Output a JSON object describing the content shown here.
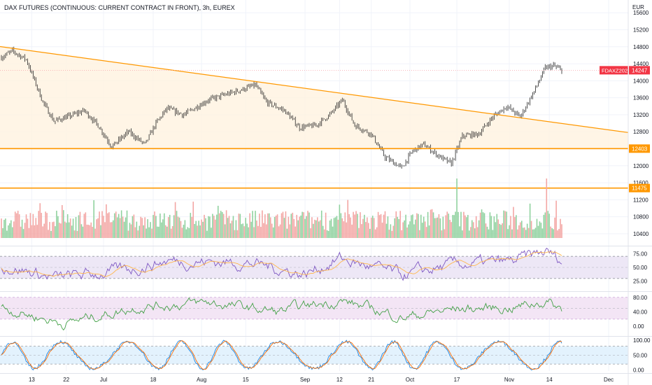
{
  "header": {
    "title": "DAX FUTURES (CONTINUOUS: CURRENT CONTRACT IN FRONT), 3h, EUREX"
  },
  "colors": {
    "up": "#4caf50",
    "down": "#ef5350",
    "candle": "#222222",
    "trend": "#ff9800",
    "rsi_line": "#7e57c2",
    "rsi_ma": "#ffb74d",
    "osc_line": "#43a047",
    "stoch_k": "#1e88e5",
    "stoch_d": "#ff6d00",
    "price_tag": "#f23645"
  },
  "chart_data": [
    {
      "type": "candlestick",
      "title": "DAX FUTURES (CONTINUOUS: CURRENT CONTRACT IN FRONT), 3h, EUREX",
      "ylabel": "EUR",
      "y_ticks": [
        15600,
        15200,
        14800,
        14400,
        14000,
        13600,
        13200,
        12800,
        12400,
        12000,
        11600,
        11200,
        10800,
        10400
      ],
      "ylim": [
        10300,
        15900
      ],
      "x_ticks": [
        "13",
        "22",
        "Jul",
        "18",
        "Aug",
        "15",
        "Sep",
        "12",
        "21",
        "Oct",
        "17",
        "Nov",
        "14",
        "Dec"
      ],
      "x_tick_index": [
        22,
        47,
        74,
        110,
        145,
        177,
        220,
        245,
        268,
        296,
        330,
        368,
        397,
        440
      ],
      "n_bars": 407,
      "close_path": [
        {
          "i": 0,
          "v": 14550
        },
        {
          "i": 8,
          "v": 14700
        },
        {
          "i": 18,
          "v": 14500
        },
        {
          "i": 24,
          "v": 14000
        },
        {
          "i": 30,
          "v": 13500
        },
        {
          "i": 38,
          "v": 13050
        },
        {
          "i": 48,
          "v": 13150
        },
        {
          "i": 60,
          "v": 13300
        },
        {
          "i": 70,
          "v": 12950
        },
        {
          "i": 80,
          "v": 12450
        },
        {
          "i": 92,
          "v": 12800
        },
        {
          "i": 104,
          "v": 12500
        },
        {
          "i": 112,
          "v": 13000
        },
        {
          "i": 120,
          "v": 13350
        },
        {
          "i": 132,
          "v": 13200
        },
        {
          "i": 150,
          "v": 13550
        },
        {
          "i": 165,
          "v": 13700
        },
        {
          "i": 175,
          "v": 13800
        },
        {
          "i": 184,
          "v": 13900
        },
        {
          "i": 192,
          "v": 13500
        },
        {
          "i": 205,
          "v": 13300
        },
        {
          "i": 216,
          "v": 12900
        },
        {
          "i": 228,
          "v": 12950
        },
        {
          "i": 238,
          "v": 13200
        },
        {
          "i": 247,
          "v": 13550
        },
        {
          "i": 256,
          "v": 12950
        },
        {
          "i": 268,
          "v": 12750
        },
        {
          "i": 278,
          "v": 12200
        },
        {
          "i": 290,
          "v": 11950
        },
        {
          "i": 298,
          "v": 12350
        },
        {
          "i": 306,
          "v": 12500
        },
        {
          "i": 318,
          "v": 12200
        },
        {
          "i": 326,
          "v": 12050
        },
        {
          "i": 334,
          "v": 12700
        },
        {
          "i": 346,
          "v": 12750
        },
        {
          "i": 356,
          "v": 13150
        },
        {
          "i": 366,
          "v": 13400
        },
        {
          "i": 376,
          "v": 13150
        },
        {
          "i": 386,
          "v": 13750
        },
        {
          "i": 394,
          "v": 14300
        },
        {
          "i": 400,
          "v": 14350
        },
        {
          "i": 406,
          "v": 14247
        }
      ],
      "trendline": {
        "from": {
          "i": 0,
          "v": 14800
        },
        "to": {
          "i": 450,
          "v": 12800
        }
      },
      "horizontal_levels": [
        {
          "value": 12403,
          "label": "12403"
        },
        {
          "value": 11475,
          "label": "11475"
        }
      ],
      "last_price": {
        "symbol": "FDAXZ2022",
        "value": 14247
      }
    },
    {
      "type": "bar",
      "title": "Volume",
      "note": "Volume histogram, green = up bar, red = down bar; values not labeled"
    },
    {
      "type": "line",
      "title": "RSI",
      "y_ticks": [
        75.0,
        50.0,
        25.0
      ],
      "ylim": [
        12,
        88
      ],
      "bands": [
        70,
        30
      ],
      "series": [
        {
          "role": "rsi",
          "values_path": [
            {
              "i": 0,
              "v": 55
            },
            {
              "i": 40,
              "v": 30
            },
            {
              "i": 90,
              "v": 45
            },
            {
              "i": 120,
              "v": 62
            },
            {
              "i": 180,
              "v": 58
            },
            {
              "i": 220,
              "v": 38
            },
            {
              "i": 245,
              "v": 66
            },
            {
              "i": 290,
              "v": 35
            },
            {
              "i": 330,
              "v": 55
            },
            {
              "i": 370,
              "v": 60
            },
            {
              "i": 395,
              "v": 78
            },
            {
              "i": 406,
              "v": 62
            }
          ]
        },
        {
          "role": "rsi_ma"
        }
      ]
    },
    {
      "type": "line",
      "title": "Oscillator",
      "y_ticks": [
        80.0,
        40.0,
        0.0
      ],
      "ylim": [
        -15,
        95
      ],
      "bands": [
        80,
        20
      ],
      "series": [
        {
          "role": "osc",
          "values_path": [
            {
              "i": 0,
              "v": 52
            },
            {
              "i": 45,
              "v": 8
            },
            {
              "i": 100,
              "v": 55
            },
            {
              "i": 150,
              "v": 65
            },
            {
              "i": 200,
              "v": 40
            },
            {
              "i": 245,
              "v": 72
            },
            {
              "i": 290,
              "v": 25
            },
            {
              "i": 330,
              "v": 48
            },
            {
              "i": 370,
              "v": 52
            },
            {
              "i": 395,
              "v": 70
            },
            {
              "i": 406,
              "v": 48
            }
          ]
        }
      ]
    },
    {
      "type": "line",
      "title": "Stochastic",
      "y_ticks": [
        100.0,
        50.0,
        0.0
      ],
      "ylim": [
        -8,
        112
      ],
      "bands": [
        80,
        20
      ],
      "series": [
        {
          "role": "stoch_k"
        },
        {
          "role": "stoch_d"
        }
      ]
    }
  ]
}
